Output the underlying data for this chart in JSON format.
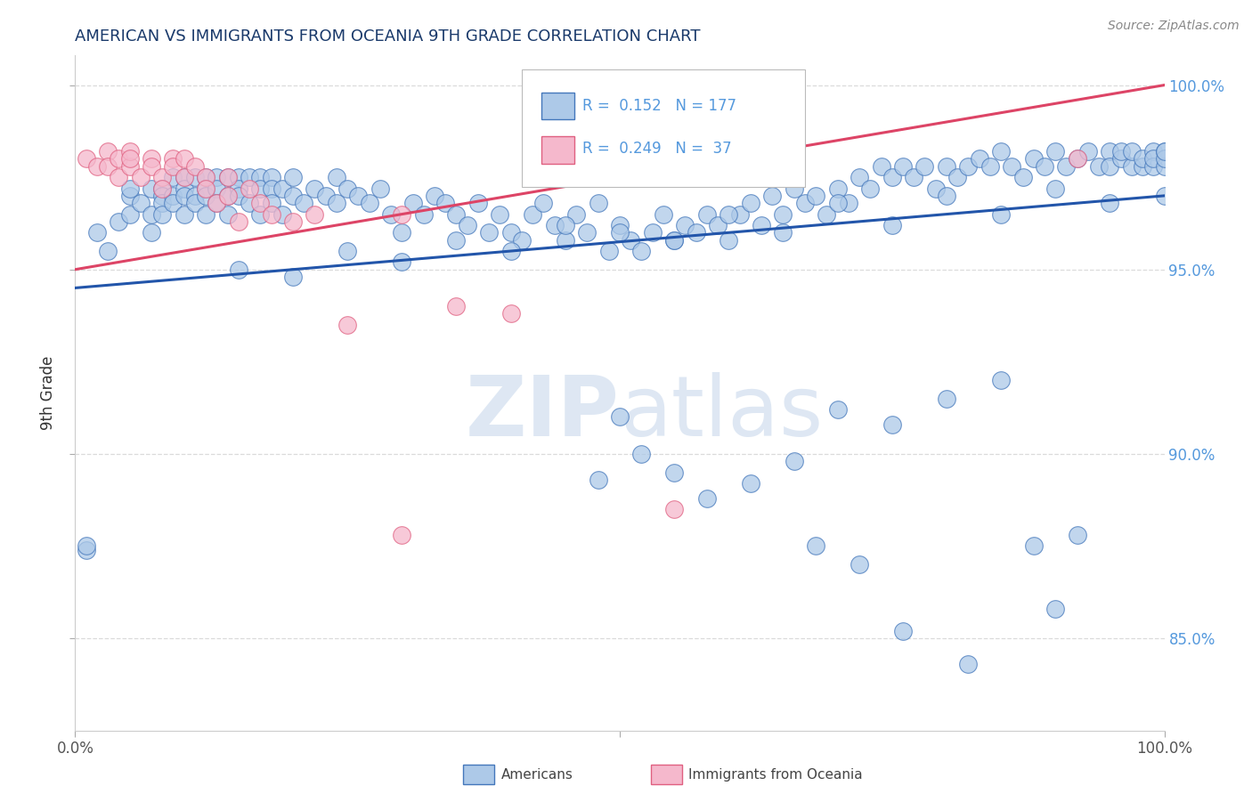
{
  "title": "AMERICAN VS IMMIGRANTS FROM OCEANIA 9TH GRADE CORRELATION CHART",
  "source_text": "Source: ZipAtlas.com",
  "ylabel": "9th Grade",
  "xlim": [
    0.0,
    1.0
  ],
  "ylim": [
    0.825,
    1.008
  ],
  "ytick_vals": [
    0.85,
    0.9,
    0.95,
    1.0
  ],
  "ytick_labels": [
    "85.0%",
    "90.0%",
    "95.0%",
    "100.0%"
  ],
  "legend_r_blue": "0.152",
  "legend_n_blue": "177",
  "legend_r_pink": "0.249",
  "legend_n_pink": "37",
  "blue_scatter_color": "#adc9e8",
  "blue_edge_color": "#4477bb",
  "pink_scatter_color": "#f5b8cc",
  "pink_edge_color": "#e06080",
  "blue_line_color": "#2255aa",
  "pink_line_color": "#dd4466",
  "title_color": "#1a3a6b",
  "source_color": "#888888",
  "ylabel_color": "#333333",
  "ytick_color": "#5599dd",
  "xtick_color": "#555555",
  "grid_color": "#cccccc",
  "watermark_color": "#c8d8ec",
  "blue_line_y0": 0.945,
  "blue_line_y1": 0.97,
  "pink_line_y0": 0.95,
  "pink_line_y1": 1.0,
  "americans_x": [
    0.01,
    0.01,
    0.02,
    0.03,
    0.04,
    0.05,
    0.05,
    0.05,
    0.06,
    0.07,
    0.07,
    0.07,
    0.08,
    0.08,
    0.08,
    0.08,
    0.09,
    0.09,
    0.09,
    0.1,
    0.1,
    0.1,
    0.1,
    0.11,
    0.11,
    0.11,
    0.12,
    0.12,
    0.12,
    0.12,
    0.13,
    0.13,
    0.13,
    0.14,
    0.14,
    0.14,
    0.15,
    0.15,
    0.15,
    0.16,
    0.16,
    0.17,
    0.17,
    0.17,
    0.18,
    0.18,
    0.18,
    0.19,
    0.19,
    0.2,
    0.2,
    0.21,
    0.22,
    0.23,
    0.24,
    0.24,
    0.25,
    0.26,
    0.27,
    0.28,
    0.29,
    0.3,
    0.31,
    0.32,
    0.33,
    0.34,
    0.35,
    0.36,
    0.37,
    0.38,
    0.39,
    0.4,
    0.41,
    0.42,
    0.43,
    0.44,
    0.45,
    0.46,
    0.47,
    0.48,
    0.49,
    0.5,
    0.5,
    0.51,
    0.52,
    0.53,
    0.54,
    0.55,
    0.56,
    0.57,
    0.58,
    0.59,
    0.6,
    0.61,
    0.62,
    0.63,
    0.64,
    0.65,
    0.66,
    0.67,
    0.68,
    0.69,
    0.7,
    0.71,
    0.72,
    0.73,
    0.74,
    0.75,
    0.76,
    0.77,
    0.78,
    0.79,
    0.8,
    0.81,
    0.82,
    0.83,
    0.84,
    0.85,
    0.86,
    0.87,
    0.88,
    0.89,
    0.9,
    0.91,
    0.92,
    0.93,
    0.94,
    0.95,
    0.95,
    0.96,
    0.96,
    0.97,
    0.97,
    0.98,
    0.98,
    0.99,
    0.99,
    0.99,
    1.0,
    1.0,
    1.0,
    1.0,
    0.15,
    0.2,
    0.25,
    0.3,
    0.35,
    0.4,
    0.45,
    0.5,
    0.55,
    0.6,
    0.65,
    0.7,
    0.75,
    0.8,
    0.85,
    0.9,
    0.95,
    1.0,
    0.48,
    0.52,
    0.55,
    0.58,
    0.62,
    0.66,
    0.7,
    0.75,
    0.8,
    0.85,
    0.88,
    0.92,
    0.68,
    0.72,
    0.76,
    0.82,
    0.9
  ],
  "americans_y": [
    0.874,
    0.875,
    0.96,
    0.955,
    0.963,
    0.97,
    0.972,
    0.965,
    0.968,
    0.972,
    0.965,
    0.96,
    0.972,
    0.97,
    0.968,
    0.965,
    0.975,
    0.97,
    0.968,
    0.975,
    0.972,
    0.97,
    0.965,
    0.975,
    0.97,
    0.968,
    0.975,
    0.972,
    0.97,
    0.965,
    0.975,
    0.972,
    0.968,
    0.975,
    0.97,
    0.965,
    0.975,
    0.972,
    0.97,
    0.975,
    0.968,
    0.975,
    0.972,
    0.965,
    0.975,
    0.972,
    0.968,
    0.972,
    0.965,
    0.975,
    0.97,
    0.968,
    0.972,
    0.97,
    0.975,
    0.968,
    0.972,
    0.97,
    0.968,
    0.972,
    0.965,
    0.96,
    0.968,
    0.965,
    0.97,
    0.968,
    0.965,
    0.962,
    0.968,
    0.96,
    0.965,
    0.96,
    0.958,
    0.965,
    0.968,
    0.962,
    0.958,
    0.965,
    0.96,
    0.968,
    0.955,
    0.962,
    0.91,
    0.958,
    0.955,
    0.96,
    0.965,
    0.958,
    0.962,
    0.96,
    0.965,
    0.962,
    0.958,
    0.965,
    0.968,
    0.962,
    0.97,
    0.965,
    0.972,
    0.968,
    0.97,
    0.965,
    0.972,
    0.968,
    0.975,
    0.972,
    0.978,
    0.975,
    0.978,
    0.975,
    0.978,
    0.972,
    0.978,
    0.975,
    0.978,
    0.98,
    0.978,
    0.982,
    0.978,
    0.975,
    0.98,
    0.978,
    0.982,
    0.978,
    0.98,
    0.982,
    0.978,
    0.982,
    0.978,
    0.98,
    0.982,
    0.978,
    0.982,
    0.978,
    0.98,
    0.982,
    0.978,
    0.98,
    0.982,
    0.978,
    0.98,
    0.982,
    0.95,
    0.948,
    0.955,
    0.952,
    0.958,
    0.955,
    0.962,
    0.96,
    0.958,
    0.965,
    0.96,
    0.968,
    0.962,
    0.97,
    0.965,
    0.972,
    0.968,
    0.97,
    0.893,
    0.9,
    0.895,
    0.888,
    0.892,
    0.898,
    0.912,
    0.908,
    0.915,
    0.92,
    0.875,
    0.878,
    0.875,
    0.87,
    0.852,
    0.843,
    0.858
  ],
  "oceania_x": [
    0.01,
    0.02,
    0.03,
    0.03,
    0.04,
    0.04,
    0.05,
    0.05,
    0.06,
    0.07,
    0.07,
    0.08,
    0.08,
    0.09,
    0.09,
    0.1,
    0.1,
    0.11,
    0.12,
    0.12,
    0.13,
    0.14,
    0.14,
    0.15,
    0.16,
    0.17,
    0.18,
    0.2,
    0.22,
    0.25,
    0.3,
    0.35,
    0.4,
    0.3,
    0.55,
    0.92,
    0.05
  ],
  "oceania_y": [
    0.98,
    0.978,
    0.982,
    0.978,
    0.98,
    0.975,
    0.978,
    0.982,
    0.975,
    0.98,
    0.978,
    0.975,
    0.972,
    0.98,
    0.978,
    0.975,
    0.98,
    0.978,
    0.975,
    0.972,
    0.968,
    0.975,
    0.97,
    0.963,
    0.972,
    0.968,
    0.965,
    0.963,
    0.965,
    0.935,
    0.965,
    0.94,
    0.938,
    0.878,
    0.885,
    0.98,
    0.98
  ]
}
